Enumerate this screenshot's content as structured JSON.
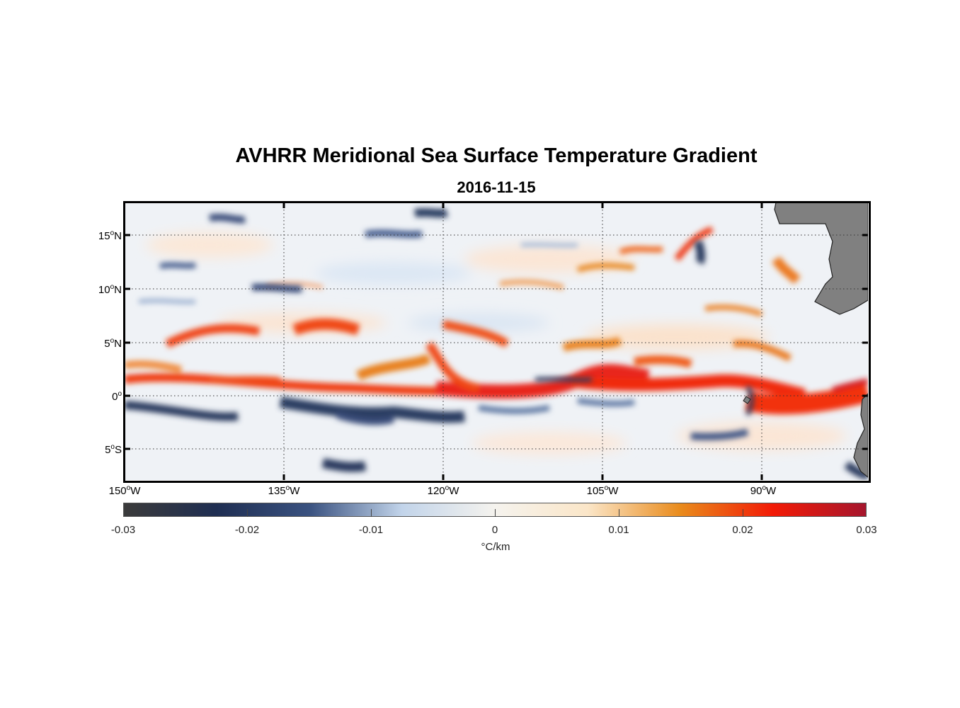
{
  "title": "AVHRR Meridional Sea Surface Temperature Gradient",
  "subtitle": "2016-11-15",
  "map": {
    "lat_ticks": [
      {
        "deg": "15",
        "hemi": "N"
      },
      {
        "deg": "10",
        "hemi": "N"
      },
      {
        "deg": "5",
        "hemi": "N"
      },
      {
        "deg": "0",
        "hemi": ""
      },
      {
        "deg": "5",
        "hemi": "S"
      }
    ],
    "lon_ticks": [
      {
        "deg": "150",
        "hemi": "W"
      },
      {
        "deg": "135",
        "hemi": "W"
      },
      {
        "deg": "120",
        "hemi": "W"
      },
      {
        "deg": "105",
        "hemi": "W"
      },
      {
        "deg": "90",
        "hemi": "W"
      }
    ],
    "land_color": "#808080",
    "grid": "dotted"
  },
  "colorbar": {
    "ticks": [
      "-0.03",
      "-0.02",
      "-0.01",
      "0",
      "0.01",
      "0.02",
      "0.03"
    ],
    "range": [
      -0.03,
      0.03
    ],
    "unit": "°C/km",
    "colors": [
      "#3b3b3b",
      "#1f2e52",
      "#3a5280",
      "#c2d4ea",
      "#f5f3ee",
      "#fbe6c8",
      "#e98b1c",
      "#f21a06",
      "#a5162d"
    ]
  }
}
